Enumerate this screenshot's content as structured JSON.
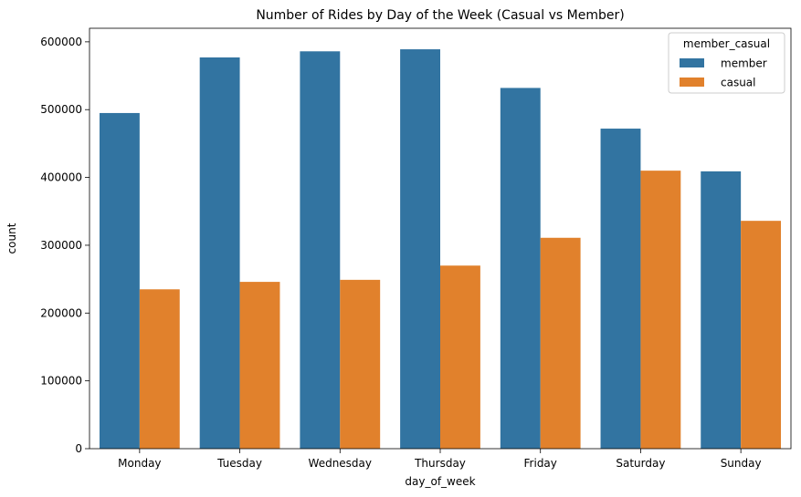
{
  "chart_data": {
    "type": "bar",
    "title": "Number of Rides by Day of the Week (Casual vs Member)",
    "xlabel": "day_of_week",
    "ylabel": "count",
    "categories": [
      "Monday",
      "Tuesday",
      "Wednesday",
      "Thursday",
      "Friday",
      "Saturday",
      "Sunday"
    ],
    "series": [
      {
        "name": "member",
        "color": "#3274a1",
        "values": [
          495000,
          577000,
          586000,
          589000,
          532000,
          472000,
          409000
        ]
      },
      {
        "name": "casual",
        "color": "#e1812c",
        "values": [
          235000,
          246000,
          249000,
          270000,
          311000,
          410000,
          336000
        ]
      }
    ],
    "ylim": [
      0,
      620000
    ],
    "yticks": [
      0,
      100000,
      200000,
      300000,
      400000,
      500000,
      600000
    ],
    "legend": {
      "title": "member_casual",
      "position": "top-right"
    },
    "grid": false
  }
}
